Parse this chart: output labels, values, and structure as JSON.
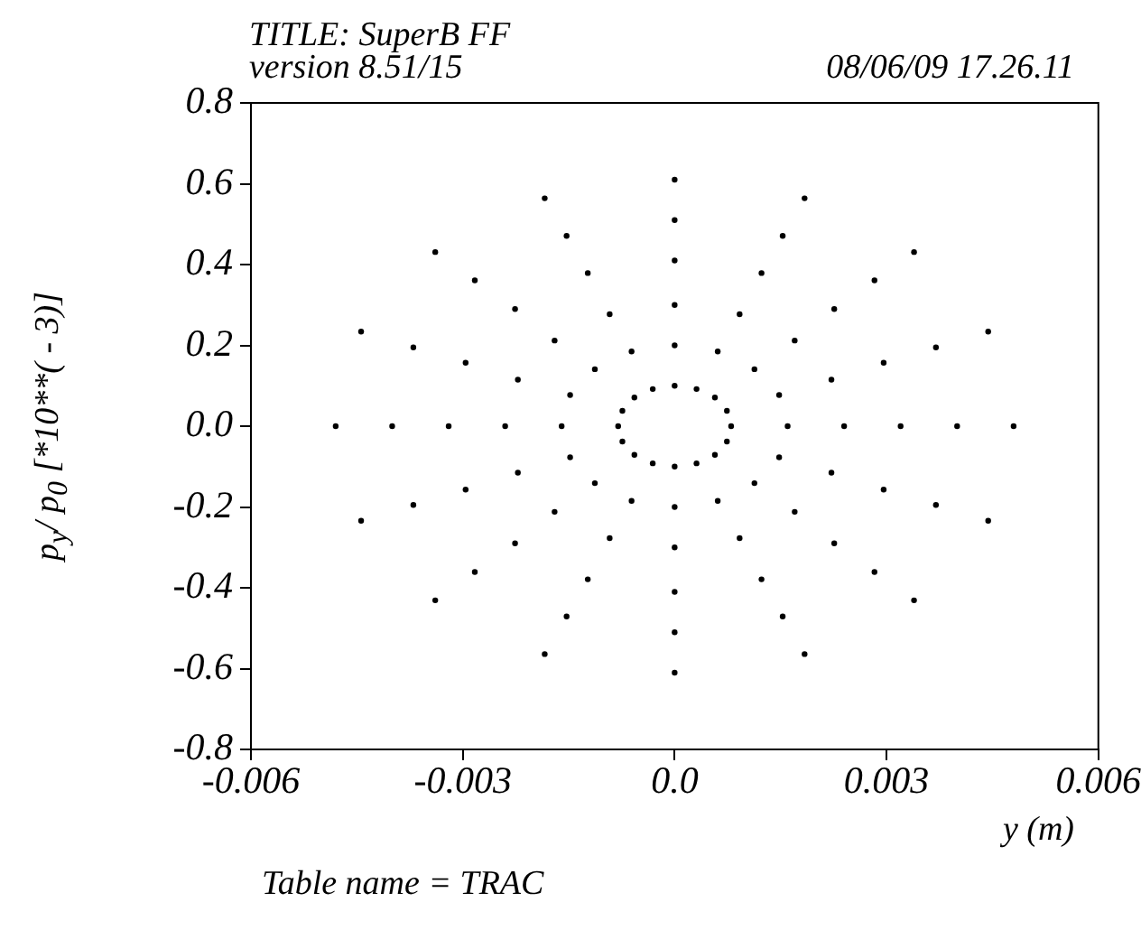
{
  "chart_data": {
    "type": "scatter",
    "title": "TITLE: SuperB FF",
    "subtitle": "version 8.51/15",
    "xlabel": "y (m)",
    "ylabel": "p$_{y}$/ p$_{0}$   [*10**( - 3)]",
    "annotations": [
      "08/06/09  17.26.11",
      "Table name = TRAC"
    ],
    "xlim": [
      -0.006,
      0.006
    ],
    "xticks": [
      -0.006,
      -0.003,
      {
        "value": 0,
        "label": "0.0"
      },
      0.003,
      0.006
    ],
    "ylim": [
      -0.8,
      0.8
    ],
    "yticks": [
      -0.8,
      -0.6,
      -0.4,
      -0.2,
      {
        "value": 0,
        "label": "0.0"
      },
      0.2,
      0.4,
      0.6,
      0.8
    ],
    "grid": false,
    "legend": false,
    "marker": "circle",
    "series": [
      {
        "color": "#000000",
        "x": [
          0.0008,
          0.00074,
          0.00057,
          0.00031,
          0,
          -0.00031,
          -0.00057,
          -0.00074,
          -0.0008,
          -0.00074,
          -0.00057,
          -0.00031,
          0,
          0.00031,
          0.00057,
          0.00074
        ],
        "values": [
          0,
          0.038,
          0.071,
          0.092,
          0.1,
          0.092,
          0.071,
          0.038,
          0,
          -0.038,
          -0.071,
          -0.092,
          -0.1,
          -0.092,
          -0.071,
          -0.038
        ]
      },
      {
        "color": "#000000",
        "x": [
          0.0016,
          0.00148,
          0.00113,
          0.00061,
          0,
          -0.00061,
          -0.00113,
          -0.00148,
          -0.0016,
          -0.00148,
          -0.00113,
          -0.00061,
          0,
          0.00061,
          0.00113,
          0.00148
        ],
        "values": [
          0,
          0.077,
          0.141,
          0.185,
          0.2,
          0.185,
          0.141,
          0.077,
          0,
          -0.077,
          -0.141,
          -0.185,
          -0.2,
          -0.185,
          -0.141,
          -0.077
        ]
      },
      {
        "color": "#000000",
        "x": [
          0.0024,
          0.00222,
          0.0017,
          0.00092,
          0,
          -0.00092,
          -0.0017,
          -0.00222,
          -0.0024,
          -0.00222,
          -0.0017,
          -0.00092,
          0,
          0.00092,
          0.0017,
          0.00222
        ],
        "values": [
          0,
          0.115,
          0.212,
          0.277,
          0.3,
          0.277,
          0.212,
          0.115,
          0,
          -0.115,
          -0.212,
          -0.277,
          -0.3,
          -0.277,
          -0.212,
          -0.115
        ]
      },
      {
        "color": "#000000",
        "x": [
          0.0032,
          0.00296,
          0.00226,
          0.00123,
          0,
          -0.00123,
          -0.00226,
          -0.00296,
          -0.0032,
          -0.00296,
          -0.00226,
          -0.00123,
          0,
          0.00123,
          0.00226,
          0.00296
        ],
        "values": [
          0,
          0.157,
          0.29,
          0.379,
          0.41,
          0.379,
          0.29,
          0.157,
          0,
          -0.157,
          -0.29,
          -0.379,
          -0.41,
          -0.379,
          -0.29,
          -0.157
        ]
      },
      {
        "color": "#000000",
        "x": [
          0.004,
          0.0037,
          0.00283,
          0.00153,
          0,
          -0.00153,
          -0.00283,
          -0.0037,
          -0.004,
          -0.0037,
          -0.00283,
          -0.00153,
          0,
          0.00153,
          0.00283,
          0.0037
        ],
        "values": [
          0,
          0.195,
          0.361,
          0.471,
          0.51,
          0.471,
          0.361,
          0.195,
          0,
          -0.195,
          -0.361,
          -0.471,
          -0.51,
          -0.471,
          -0.361,
          -0.195
        ]
      },
      {
        "color": "#000000",
        "x": [
          0.0048,
          0.00444,
          0.00339,
          0.00184,
          0,
          -0.00184,
          -0.00339,
          -0.00444,
          -0.0048,
          -0.00444,
          -0.00339,
          -0.00184,
          0,
          0.00184,
          0.00339,
          0.00444
        ],
        "values": [
          0,
          0.234,
          0.431,
          0.564,
          0.61,
          0.564,
          0.431,
          0.234,
          0,
          -0.234,
          -0.431,
          -0.564,
          -0.61,
          -0.564,
          -0.431,
          -0.234
        ]
      }
    ]
  }
}
